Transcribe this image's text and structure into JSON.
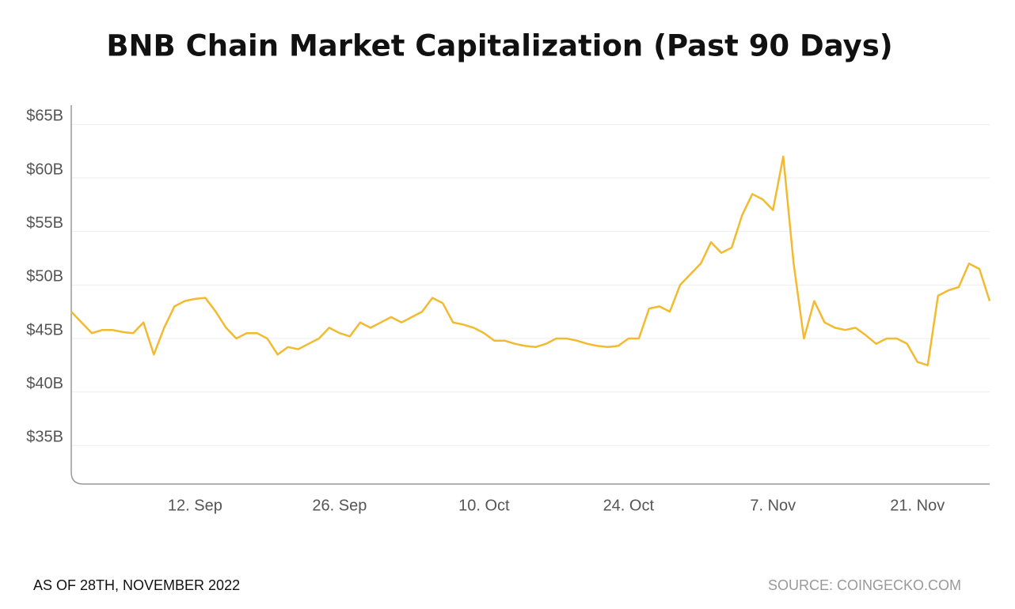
{
  "chart_data": {
    "type": "line",
    "title": "BNB Chain Market Capitalization (Past 90 Days)",
    "x": [
      "31. Aug",
      "1. Sep",
      "2. Sep",
      "3. Sep",
      "4. Sep",
      "5. Sep",
      "6. Sep",
      "7. Sep",
      "8. Sep",
      "9. Sep",
      "10. Sep",
      "11. Sep",
      "12. Sep",
      "13. Sep",
      "14. Sep",
      "15. Sep",
      "16. Sep",
      "17. Sep",
      "18. Sep",
      "19. Sep",
      "20. Sep",
      "21. Sep",
      "22. Sep",
      "23. Sep",
      "24. Sep",
      "25. Sep",
      "26. Sep",
      "27. Sep",
      "28. Sep",
      "29. Sep",
      "30. Sep",
      "1. Oct",
      "2. Oct",
      "3. Oct",
      "4. Oct",
      "5. Oct",
      "6. Oct",
      "7. Oct",
      "8. Oct",
      "9. Oct",
      "10. Oct",
      "11. Oct",
      "12. Oct",
      "13. Oct",
      "14. Oct",
      "15. Oct",
      "16. Oct",
      "17. Oct",
      "18. Oct",
      "19. Oct",
      "20. Oct",
      "21. Oct",
      "22. Oct",
      "23. Oct",
      "24. Oct",
      "25. Oct",
      "26. Oct",
      "27. Oct",
      "28. Oct",
      "29. Oct",
      "30. Oct",
      "31. Oct",
      "1. Nov",
      "2. Nov",
      "3. Nov",
      "4. Nov",
      "5. Nov",
      "6. Nov",
      "7. Nov",
      "8. Nov",
      "9. Nov",
      "10. Nov",
      "11. Nov",
      "12. Nov",
      "13. Nov",
      "14. Nov",
      "15. Nov",
      "16. Nov",
      "17. Nov",
      "18. Nov",
      "19. Nov",
      "20. Nov",
      "21. Nov",
      "22. Nov",
      "23. Nov",
      "24. Nov",
      "25. Nov",
      "26. Nov",
      "27. Nov",
      "28. Nov"
    ],
    "values": [
      47.5,
      46.5,
      45.5,
      45.8,
      45.8,
      45.6,
      45.5,
      46.5,
      43.5,
      46,
      48,
      48.5,
      48.7,
      48.8,
      47.5,
      46,
      45,
      45.5,
      45.5,
      45,
      43.5,
      44.2,
      44,
      44.5,
      45,
      46,
      45.5,
      45.2,
      46.5,
      46,
      46.5,
      47,
      46.5,
      47,
      47.5,
      48.8,
      48.3,
      46.5,
      46.3,
      46,
      45.5,
      44.8,
      44.8,
      44.5,
      44.3,
      44.2,
      44.5,
      45,
      45,
      44.8,
      44.5,
      44.3,
      44.2,
      44.3,
      45,
      45,
      47.8,
      48,
      47.5,
      50,
      51,
      52,
      54,
      53,
      53.5,
      56.5,
      58.5,
      58,
      57,
      62,
      52,
      45,
      48.5,
      46.5,
      46,
      45.8,
      46,
      45.3,
      44.5,
      45,
      45,
      44.5,
      42.8,
      42.5,
      49,
      49.5,
      49.8,
      52,
      51.5,
      48.5
    ],
    "color": "#f3ba2f",
    "xlim": [
      "31. Aug",
      "28. Nov"
    ],
    "xticks": [
      "12. Sep",
      "26. Sep",
      "10. Oct",
      "24. Oct",
      "7. Nov",
      "21. Nov"
    ],
    "ylim": [
      31.4,
      66.8
    ],
    "yticks": [
      {
        "value": 35,
        "label": "$35B"
      },
      {
        "value": 40,
        "label": "$40B"
      },
      {
        "value": 45,
        "label": "$45B"
      },
      {
        "value": 50,
        "label": "$50B"
      },
      {
        "value": 55,
        "label": "$55B"
      },
      {
        "value": 60,
        "label": "$60B"
      },
      {
        "value": 65,
        "label": "$65B"
      }
    ],
    "grid": true
  },
  "footer": {
    "left": "AS OF 28TH, NOVEMBER 2022",
    "right": "SOURCE: COINGECKO.COM"
  }
}
